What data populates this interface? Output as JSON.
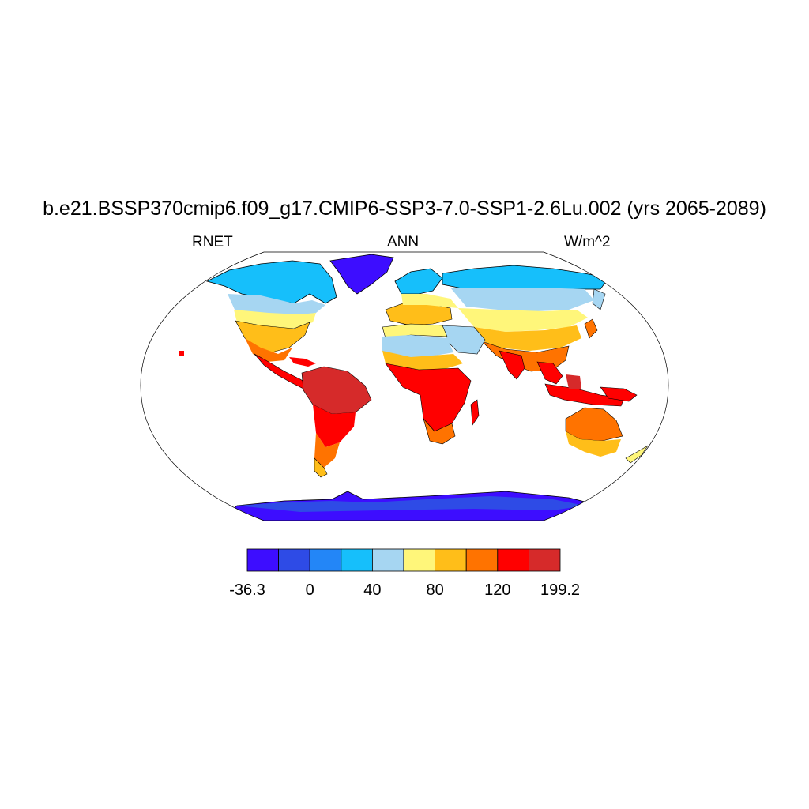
{
  "title": "b.e21.BSSP370cmip6.f09_g17.CMIP6-SSP3-7.0-SSP1-2.6Lu.002 (yrs 2065-2089)",
  "left_label": "RNET",
  "center_label": "ANN",
  "right_label": "W/m^2",
  "colorbar": {
    "colors": [
      "#3d0dff",
      "#2e4be6",
      "#2386f7",
      "#16bffb",
      "#a6d6f2",
      "#fff67a",
      "#ffbe19",
      "#ff7300",
      "#ff0000",
      "#d62a2a"
    ],
    "labels": [
      "-36.3",
      "0",
      "40",
      "80",
      "120",
      "199.2"
    ],
    "label_edges": [
      0,
      2,
      4,
      6,
      8,
      10
    ]
  },
  "ocean_color": "#ffffff"
}
